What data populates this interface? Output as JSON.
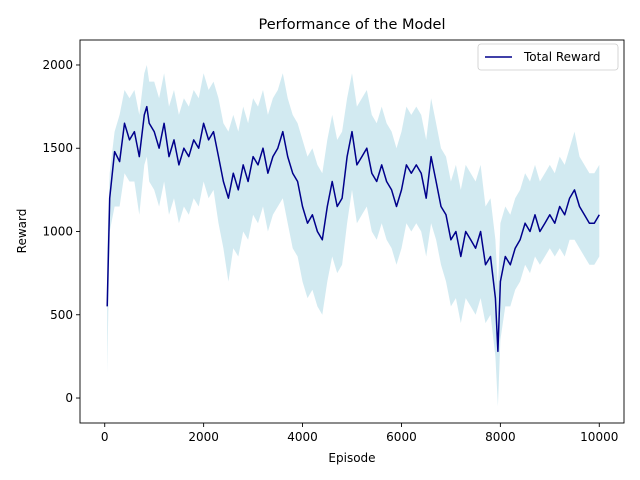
{
  "chart_data": {
    "type": "line",
    "title": "Performance of the Model",
    "xlabel": "Episode",
    "ylabel": "Reward",
    "xlim": [
      -500,
      10500
    ],
    "ylim": [
      -150,
      2150
    ],
    "xticks": [
      0,
      2000,
      4000,
      6000,
      8000,
      10000
    ],
    "yticks": [
      0,
      500,
      1000,
      1500,
      2000
    ],
    "grid": false,
    "legend_position": "top-right",
    "colors": {
      "line": "#00008b",
      "band": "#add8e6",
      "axes": "#000000"
    },
    "series": [
      {
        "name": "Total Reward",
        "x": [
          50,
          100,
          200,
          300,
          400,
          500,
          600,
          700,
          800,
          850,
          900,
          1000,
          1100,
          1200,
          1300,
          1400,
          1500,
          1600,
          1700,
          1800,
          1900,
          2000,
          2100,
          2200,
          2300,
          2400,
          2500,
          2600,
          2700,
          2800,
          2900,
          3000,
          3100,
          3200,
          3300,
          3400,
          3500,
          3600,
          3700,
          3800,
          3900,
          4000,
          4100,
          4200,
          4300,
          4400,
          4500,
          4600,
          4700,
          4800,
          4900,
          5000,
          5100,
          5200,
          5300,
          5400,
          5500,
          5600,
          5700,
          5800,
          5900,
          6000,
          6100,
          6200,
          6300,
          6400,
          6500,
          6600,
          6700,
          6800,
          6900,
          7000,
          7100,
          7200,
          7300,
          7400,
          7500,
          7600,
          7700,
          7800,
          7900,
          7950,
          8000,
          8100,
          8200,
          8300,
          8400,
          8500,
          8600,
          8700,
          8800,
          8900,
          9000,
          9100,
          9200,
          9300,
          9400,
          9500,
          9600,
          9700,
          9800,
          9900,
          10000
        ],
        "values": [
          550,
          1200,
          1480,
          1420,
          1650,
          1550,
          1600,
          1450,
          1700,
          1750,
          1650,
          1600,
          1500,
          1650,
          1450,
          1550,
          1400,
          1500,
          1450,
          1550,
          1500,
          1650,
          1550,
          1600,
          1450,
          1300,
          1200,
          1350,
          1250,
          1400,
          1300,
          1450,
          1400,
          1500,
          1350,
          1450,
          1500,
          1600,
          1450,
          1350,
          1300,
          1150,
          1050,
          1100,
          1000,
          950,
          1150,
          1300,
          1150,
          1200,
          1450,
          1600,
          1400,
          1450,
          1500,
          1350,
          1300,
          1400,
          1300,
          1250,
          1150,
          1250,
          1400,
          1350,
          1400,
          1350,
          1200,
          1450,
          1300,
          1150,
          1100,
          950,
          1000,
          850,
          1000,
          950,
          900,
          1000,
          800,
          850,
          600,
          280,
          700,
          850,
          800,
          900,
          950,
          1050,
          1000,
          1100,
          1000,
          1050,
          1100,
          1050,
          1150,
          1100,
          1200,
          1250,
          1150,
          1100,
          1050,
          1050,
          1100
        ],
        "band_lower": [
          150,
          1000,
          1150,
          1150,
          1350,
          1300,
          1300,
          1100,
          1400,
          1450,
          1300,
          1250,
          1150,
          1300,
          1100,
          1200,
          1050,
          1150,
          1100,
          1200,
          1150,
          1300,
          1200,
          1250,
          1050,
          900,
          700,
          900,
          850,
          1000,
          950,
          1100,
          1050,
          1150,
          1000,
          1100,
          1150,
          1200,
          1050,
          900,
          850,
          700,
          600,
          650,
          550,
          500,
          700,
          850,
          750,
          800,
          1050,
          1250,
          1050,
          1100,
          1150,
          1000,
          950,
          1050,
          950,
          900,
          800,
          900,
          1050,
          1000,
          1050,
          1000,
          850,
          1050,
          950,
          800,
          700,
          550,
          600,
          450,
          600,
          550,
          500,
          600,
          450,
          500,
          250,
          -50,
          350,
          550,
          550,
          650,
          700,
          800,
          750,
          850,
          800,
          850,
          900,
          850,
          900,
          850,
          950,
          950,
          900,
          850,
          800,
          800,
          850
        ],
        "band_upper": [
          900,
          1350,
          1600,
          1700,
          1850,
          1800,
          1850,
          1700,
          1950,
          2000,
          1900,
          1900,
          1800,
          1950,
          1750,
          1850,
          1700,
          1800,
          1750,
          1850,
          1800,
          1950,
          1850,
          1900,
          1800,
          1650,
          1600,
          1700,
          1600,
          1750,
          1650,
          1800,
          1750,
          1850,
          1700,
          1800,
          1850,
          1950,
          1800,
          1700,
          1650,
          1550,
          1450,
          1500,
          1400,
          1350,
          1550,
          1700,
          1550,
          1600,
          1800,
          1950,
          1750,
          1800,
          1850,
          1700,
          1650,
          1750,
          1650,
          1600,
          1500,
          1600,
          1750,
          1700,
          1750,
          1700,
          1550,
          1800,
          1650,
          1500,
          1450,
          1300,
          1400,
          1250,
          1400,
          1350,
          1300,
          1400,
          1150,
          1200,
          950,
          650,
          1050,
          1150,
          1100,
          1200,
          1250,
          1350,
          1300,
          1400,
          1300,
          1350,
          1400,
          1350,
          1450,
          1400,
          1500,
          1600,
          1450,
          1400,
          1350,
          1350,
          1400
        ]
      }
    ]
  }
}
